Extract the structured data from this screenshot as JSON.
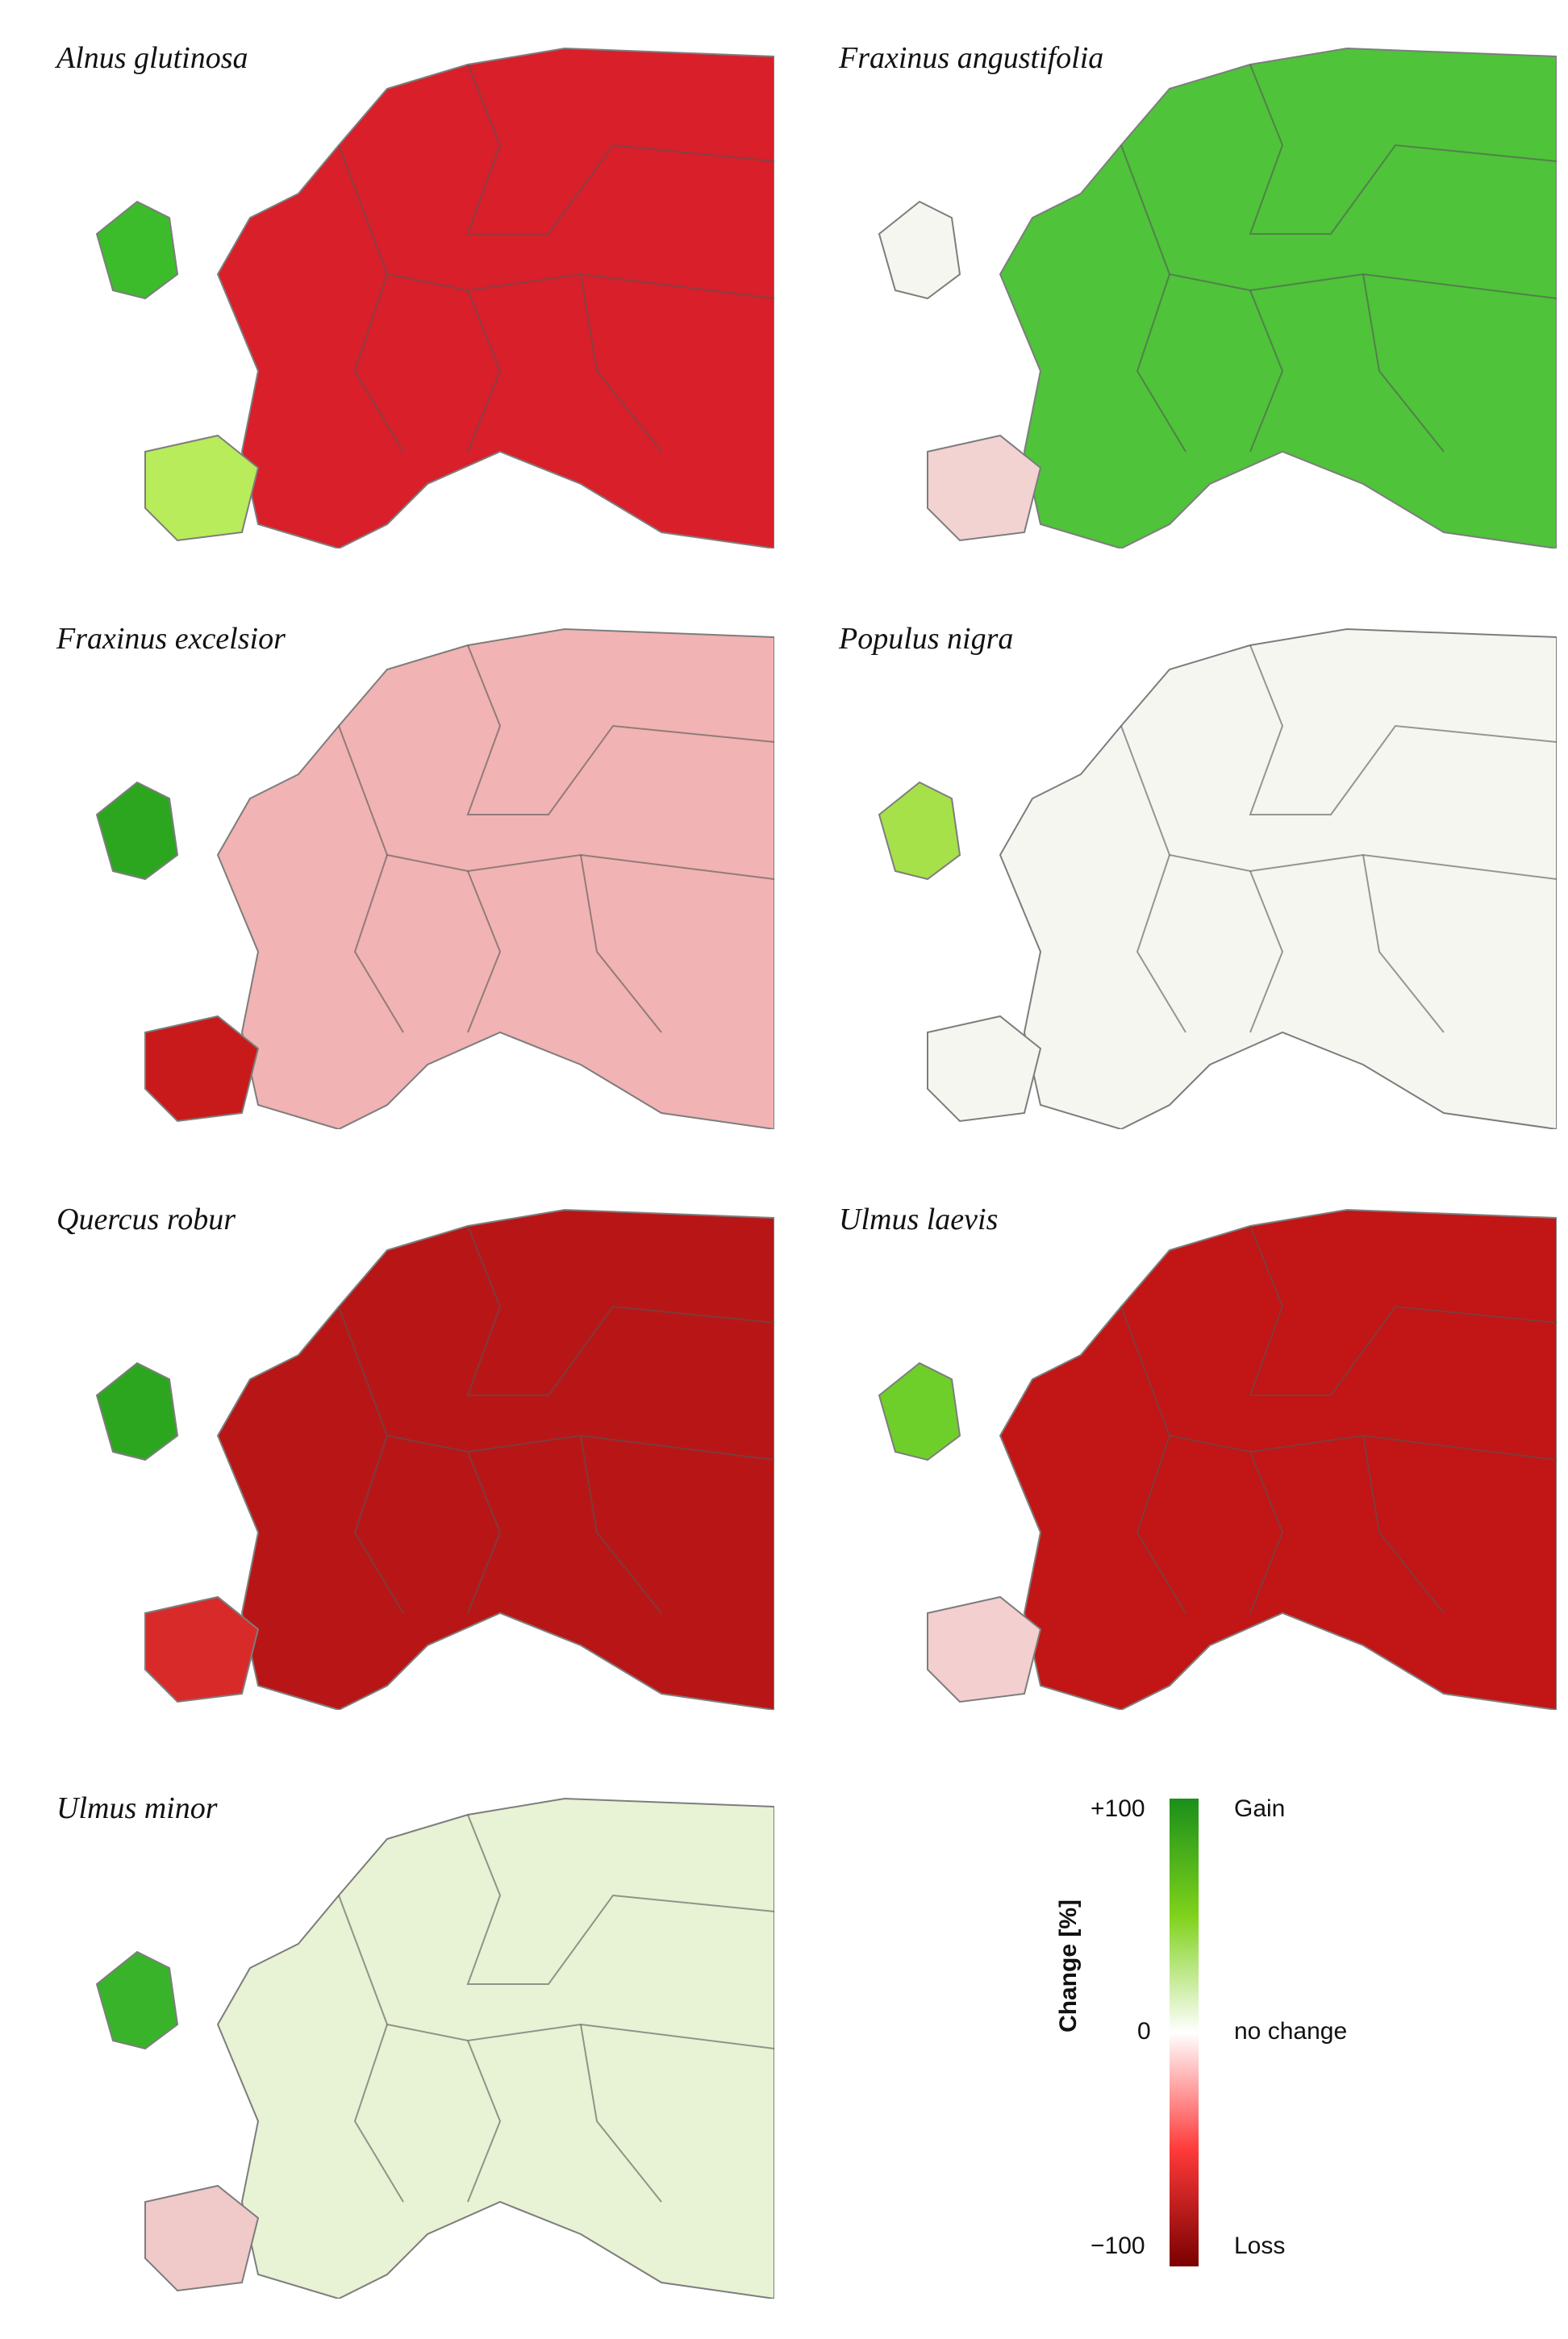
{
  "panels": [
    {
      "title": "Alnus glutinosa",
      "north": "#3cbc2a",
      "center": "#d81f2a",
      "south": "#b8ec5a"
    },
    {
      "title": "Fraxinus angustifolia",
      "north": "#f6f6f0",
      "center": "#4fc33a",
      "south": "#f3d2d2"
    },
    {
      "title": "Fraxinus excelsior",
      "north": "#2da61f",
      "center": "#f1b3b3",
      "south": "#c81a1a"
    },
    {
      "title": "Populus nigra",
      "north": "#a7e14a",
      "center": "#f6f6f0",
      "south": "#f6f6f0"
    },
    {
      "title": "Quercus robur",
      "north": "#2da61f",
      "center": "#b81616",
      "south": "#d92a2a"
    },
    {
      "title": "Ulmus laevis",
      "north": "#6fcf2a",
      "center": "#c21515",
      "south": "#f3cfcf"
    },
    {
      "title": "Ulmus minor",
      "north": "#39b42a",
      "center": "#e8f2d4",
      "south": "#f0c9c9"
    }
  ],
  "legend": {
    "axis_label": "Change [%]",
    "max_label": "+100",
    "mid_label": "0",
    "min_label": "−100",
    "gain_label": "Gain",
    "mid_text": "no change",
    "loss_label": "Loss",
    "colors": {
      "gain": "#1a8f1a",
      "mid": "#ffffff",
      "loss": "#7a0000"
    }
  }
}
